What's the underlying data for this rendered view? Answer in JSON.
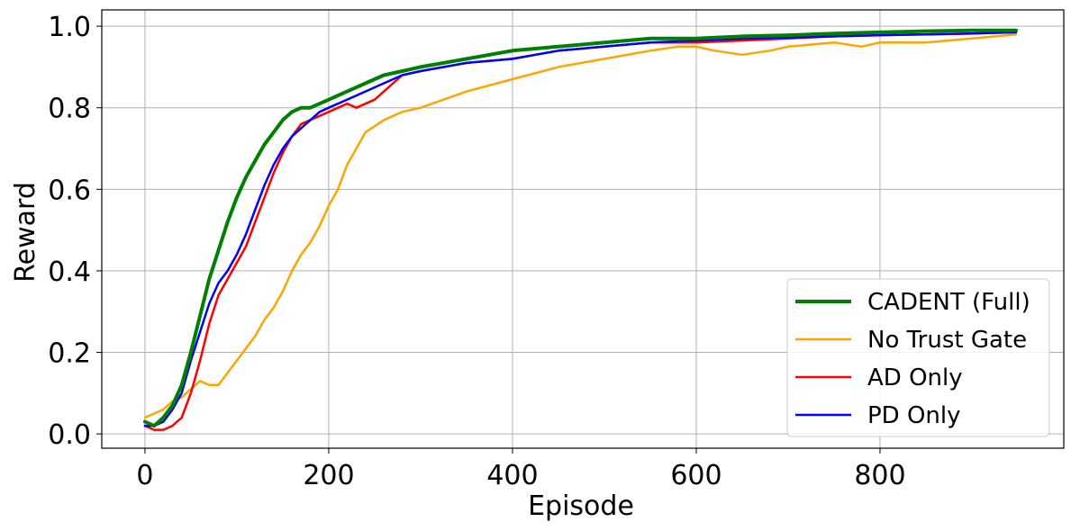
{
  "chart_data": {
    "type": "line",
    "title": "",
    "xlabel": "Episode",
    "ylabel": "Reward",
    "xlim": [
      -47,
      1000
    ],
    "ylim": [
      -0.035,
      1.04
    ],
    "xticks": [
      0,
      200,
      400,
      600,
      800
    ],
    "xtick_labels": [
      "0",
      "200",
      "400",
      "600",
      "800"
    ],
    "yticks": [
      0.0,
      0.2,
      0.4,
      0.6,
      0.8,
      1.0
    ],
    "ytick_labels": [
      "0.0",
      "0.2",
      "0.4",
      "0.6",
      "0.8",
      "1.0"
    ],
    "grid": true,
    "legend_position": "lower-right",
    "series": [
      {
        "name": "CADENT (Full)",
        "color": "#008000",
        "emphasis": "thick",
        "x": [
          0,
          10,
          20,
          30,
          40,
          50,
          60,
          70,
          80,
          90,
          100,
          110,
          120,
          130,
          140,
          150,
          160,
          170,
          180,
          190,
          200,
          220,
          240,
          260,
          280,
          300,
          350,
          400,
          450,
          500,
          550,
          600,
          650,
          700,
          750,
          800,
          850,
          900,
          948
        ],
        "y": [
          0.03,
          0.02,
          0.04,
          0.07,
          0.12,
          0.2,
          0.29,
          0.38,
          0.45,
          0.52,
          0.58,
          0.63,
          0.67,
          0.71,
          0.74,
          0.77,
          0.79,
          0.8,
          0.8,
          0.81,
          0.82,
          0.84,
          0.86,
          0.88,
          0.89,
          0.9,
          0.92,
          0.94,
          0.95,
          0.96,
          0.97,
          0.97,
          0.975,
          0.978,
          0.982,
          0.985,
          0.988,
          0.99,
          0.99
        ]
      },
      {
        "name": "No Trust Gate",
        "color": "#FFA500",
        "emphasis": "normal",
        "x": [
          0,
          10,
          20,
          30,
          40,
          50,
          60,
          70,
          80,
          90,
          100,
          110,
          120,
          130,
          140,
          150,
          160,
          170,
          180,
          190,
          200,
          210,
          220,
          230,
          240,
          260,
          280,
          300,
          350,
          400,
          450,
          500,
          550,
          580,
          600,
          620,
          650,
          680,
          700,
          750,
          780,
          800,
          850,
          900,
          948
        ],
        "y": [
          0.04,
          0.05,
          0.06,
          0.08,
          0.09,
          0.11,
          0.13,
          0.12,
          0.12,
          0.15,
          0.18,
          0.21,
          0.24,
          0.28,
          0.31,
          0.35,
          0.4,
          0.44,
          0.47,
          0.51,
          0.56,
          0.6,
          0.66,
          0.7,
          0.74,
          0.77,
          0.79,
          0.8,
          0.84,
          0.87,
          0.9,
          0.92,
          0.94,
          0.95,
          0.95,
          0.94,
          0.93,
          0.94,
          0.95,
          0.96,
          0.95,
          0.96,
          0.96,
          0.97,
          0.98
        ]
      },
      {
        "name": "AD Only",
        "color": "#FF0000",
        "emphasis": "normal",
        "x": [
          0,
          10,
          20,
          30,
          40,
          50,
          60,
          70,
          80,
          90,
          100,
          110,
          120,
          130,
          140,
          150,
          160,
          170,
          180,
          190,
          200,
          210,
          220,
          230,
          240,
          250,
          260,
          270,
          280,
          300,
          350,
          400,
          450,
          500,
          550,
          600,
          650,
          700,
          750,
          800,
          850,
          900,
          948
        ],
        "y": [
          0.02,
          0.01,
          0.01,
          0.02,
          0.04,
          0.1,
          0.18,
          0.27,
          0.34,
          0.38,
          0.42,
          0.46,
          0.52,
          0.58,
          0.64,
          0.69,
          0.73,
          0.76,
          0.77,
          0.78,
          0.79,
          0.8,
          0.81,
          0.8,
          0.81,
          0.82,
          0.84,
          0.86,
          0.88,
          0.89,
          0.91,
          0.92,
          0.94,
          0.95,
          0.96,
          0.96,
          0.965,
          0.97,
          0.975,
          0.978,
          0.98,
          0.982,
          0.985
        ]
      },
      {
        "name": "PD Only",
        "color": "#0000FF",
        "emphasis": "normal",
        "x": [
          0,
          10,
          20,
          30,
          40,
          50,
          60,
          70,
          80,
          90,
          100,
          110,
          120,
          130,
          140,
          150,
          160,
          170,
          180,
          190,
          200,
          210,
          220,
          240,
          260,
          280,
          300,
          350,
          400,
          450,
          500,
          550,
          600,
          650,
          700,
          750,
          800,
          850,
          900,
          948
        ],
        "y": [
          0.02,
          0.02,
          0.03,
          0.06,
          0.1,
          0.18,
          0.25,
          0.32,
          0.37,
          0.4,
          0.44,
          0.49,
          0.55,
          0.61,
          0.66,
          0.7,
          0.73,
          0.75,
          0.77,
          0.79,
          0.8,
          0.81,
          0.82,
          0.84,
          0.86,
          0.88,
          0.89,
          0.91,
          0.92,
          0.94,
          0.95,
          0.96,
          0.965,
          0.97,
          0.972,
          0.975,
          0.978,
          0.98,
          0.982,
          0.985
        ]
      }
    ]
  }
}
